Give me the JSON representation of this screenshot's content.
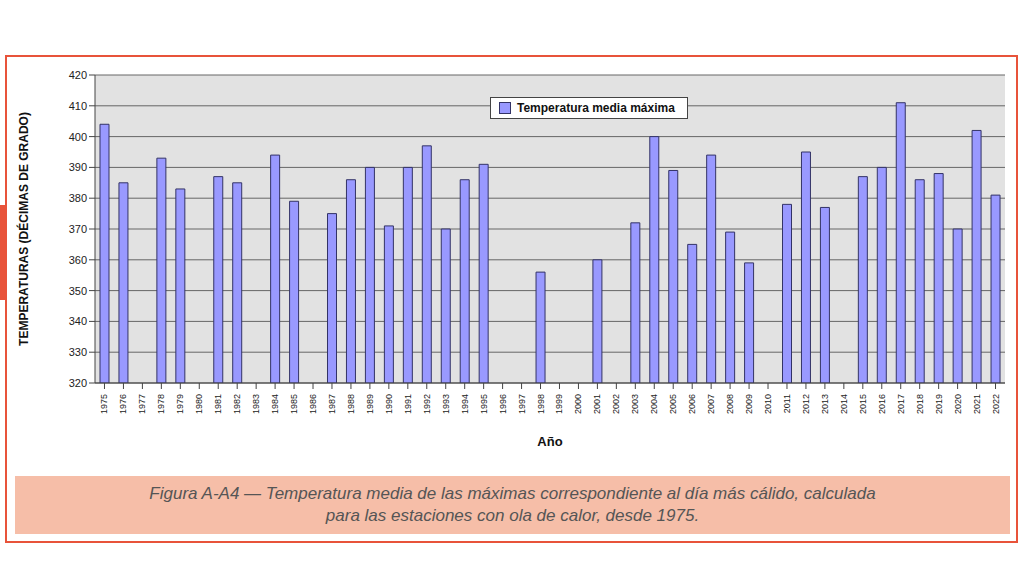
{
  "chart_data": {
    "type": "bar",
    "title": "Figura A-A4 — Temperatura media de las máximas correspondiente al día más cálido, calculada para las estaciones con ola de calor, desde 1975.",
    "x_label": "Año",
    "y_label": "TEMPERATURAS (DÉCIMAS DE GRADO)",
    "categories": [
      "1975",
      "1976",
      "1977",
      "1978",
      "1979",
      "1980",
      "1981",
      "1982",
      "1983",
      "1984",
      "1985",
      "1986",
      "1987",
      "1988",
      "1989",
      "1990",
      "1991",
      "1992",
      "1993",
      "1994",
      "1995",
      "1996",
      "1997",
      "1998",
      "1999",
      "2000",
      "2001",
      "2002",
      "2003",
      "2004",
      "2005",
      "2006",
      "2007",
      "2008",
      "2009",
      "2010",
      "2011",
      "2012",
      "2013",
      "2014",
      "2015",
      "2016",
      "2017",
      "2018",
      "2019",
      "2020",
      "2021",
      "2022"
    ],
    "series": [
      {
        "name": "Temperatura media máxima",
        "color": "#9999ff",
        "values": [
          404,
          385,
          null,
          393,
          383,
          null,
          387,
          385,
          null,
          394,
          379,
          null,
          375,
          386,
          390,
          371,
          390,
          397,
          370,
          386,
          391,
          null,
          null,
          356,
          null,
          null,
          360,
          null,
          372,
          400,
          389,
          365,
          394,
          369,
          359,
          null,
          378,
          395,
          377,
          null,
          387,
          390,
          411,
          386,
          388,
          370,
          402,
          381
        ]
      }
    ],
    "ylim": [
      320,
      420
    ],
    "yticks": [
      320,
      330,
      340,
      350,
      360,
      370,
      380,
      390,
      400,
      410,
      420
    ],
    "grid": true,
    "legend": "top"
  }
}
